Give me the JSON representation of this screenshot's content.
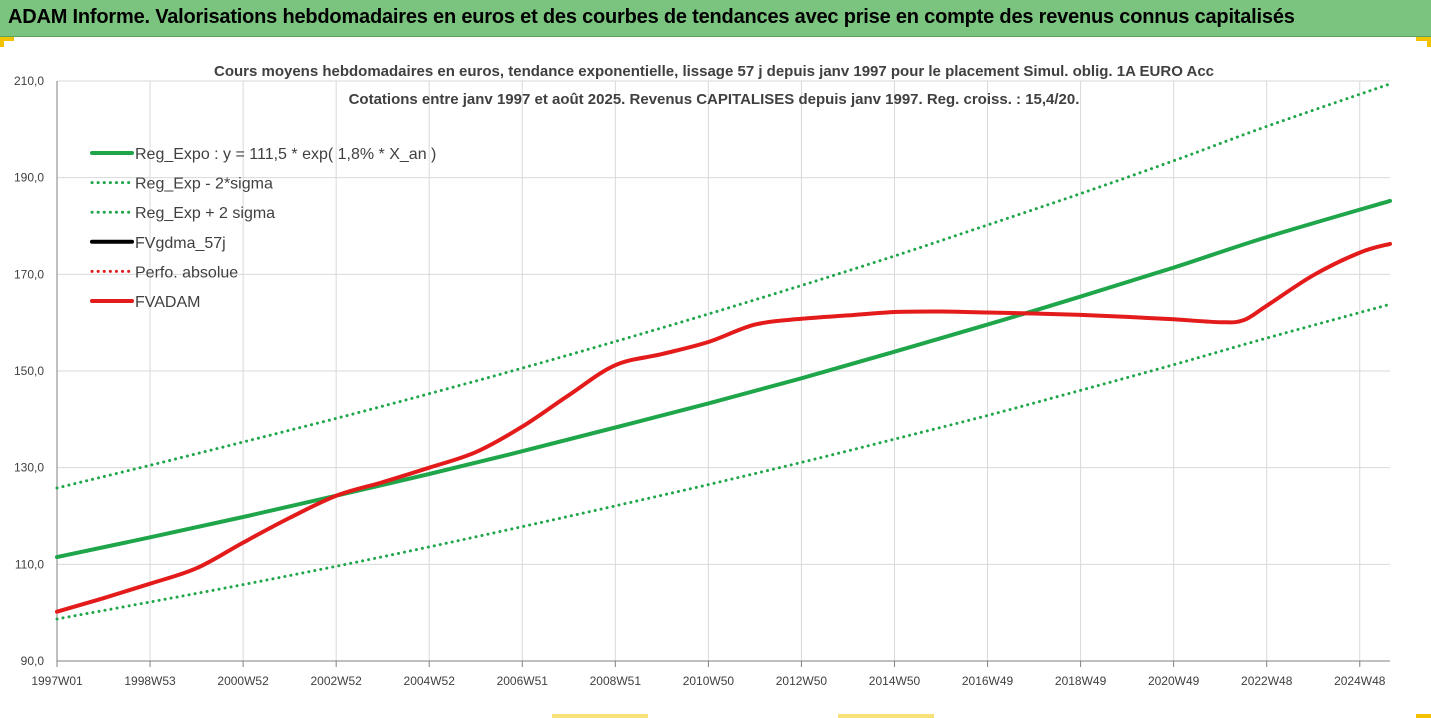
{
  "banner": {
    "title": "ADAM Informe. Valorisations hebdomadaires en euros et des courbes de tendances avec prise en compte des revenus connus capitalisés"
  },
  "colors": {
    "banner_bg": "#7bc47f",
    "green": "#1fa64a",
    "red": "#e31b1b",
    "black": "#000000",
    "grid": "#d9d9d9"
  },
  "chart_data": {
    "type": "line",
    "title": "Cours moyens hebdomadaires en euros, tendance exponentielle, lissage 57 j depuis janv 1997 pour le placement Simul. oblig. 1A EURO Acc",
    "subtitle": "Cotations entre janv 1997 et août 2025. Revenus CAPITALISES depuis janv 1997. Reg. croiss. : 15,4/20.",
    "x_tick_labels": [
      "1997W01",
      "1998W53",
      "2000W52",
      "2002W52",
      "2004W52",
      "2006W51",
      "2008W51",
      "2010W50",
      "2012W50",
      "2014W50",
      "2016W49",
      "2018W49",
      "2020W49",
      "2022W48",
      "2024W48"
    ],
    "x_ticks": [
      1997.0,
      1999.0,
      2001.0,
      2003.0,
      2005.0,
      2007.0,
      2009.0,
      2011.0,
      2013.0,
      2015.0,
      2017.0,
      2019.0,
      2021.0,
      2023.0,
      2025.0
    ],
    "x_range": [
      1997.0,
      2025.65
    ],
    "ylim": [
      90,
      210
    ],
    "y_ticks": [
      90,
      110,
      130,
      150,
      170,
      190,
      210
    ],
    "y_tick_labels": [
      "90,0",
      "110,0",
      "130,0",
      "150,0",
      "170,0",
      "190,0",
      "210,0"
    ],
    "grid": true,
    "legend_position": "top-left",
    "legend": [
      {
        "name": "Reg_Expo : y = 111,5 * exp( 1,8% *  X_an )",
        "color": "#1fa64a",
        "style": "solid"
      },
      {
        "name": "Reg_Exp - 2*sigma",
        "color": "#1fa64a",
        "style": "dotted"
      },
      {
        "name": "Reg_Exp + 2 sigma",
        "color": "#1fa64a",
        "style": "dotted"
      },
      {
        "name": "FVgdma_57j",
        "color": "#000000",
        "style": "solid"
      },
      {
        "name": "Perfo. absolue",
        "color": "#e31b1b",
        "style": "dotted"
      },
      {
        "name": "FVADAM",
        "color": "#e31b1b",
        "style": "solid"
      }
    ],
    "series": [
      {
        "name": "Reg_Expo : y = 111,5 * exp( 1,8% *  X_an )",
        "color": "#1fa64a",
        "style": "solid",
        "x": [
          1997.0,
          1999.0,
          2001.0,
          2003.0,
          2005.0,
          2007.0,
          2009.0,
          2011.0,
          2013.0,
          2015.0,
          2017.0,
          2019.0,
          2021.0,
          2023.0,
          2025.65
        ],
        "values": [
          111.5,
          115.6,
          119.8,
          124.2,
          128.7,
          133.4,
          138.3,
          143.3,
          148.5,
          154.0,
          159.6,
          165.4,
          171.4,
          177.7,
          185.2
        ]
      },
      {
        "name": "Reg_Exp - 2*sigma",
        "color": "#1fa64a",
        "style": "dotted",
        "x": [
          1997.0,
          1999.0,
          2001.0,
          2003.0,
          2005.0,
          2007.0,
          2009.0,
          2011.0,
          2013.0,
          2015.0,
          2017.0,
          2019.0,
          2021.0,
          2023.0,
          2025.65
        ],
        "values": [
          98.7,
          102.2,
          105.8,
          109.6,
          113.6,
          117.8,
          122.1,
          126.5,
          131.1,
          135.9,
          140.8,
          146.0,
          151.3,
          156.8,
          163.8
        ]
      },
      {
        "name": "Reg_Exp + 2 sigma",
        "color": "#1fa64a",
        "style": "dotted",
        "x": [
          1997.0,
          1999.0,
          2001.0,
          2003.0,
          2005.0,
          2007.0,
          2009.0,
          2011.0,
          2013.0,
          2015.0,
          2017.0,
          2019.0,
          2021.0,
          2023.0,
          2025.65
        ],
        "values": [
          125.8,
          130.5,
          135.3,
          140.2,
          145.3,
          150.6,
          156.1,
          161.8,
          167.7,
          173.8,
          180.2,
          186.7,
          193.5,
          200.6,
          209.4
        ]
      },
      {
        "name": "FVADAM",
        "color": "#e31b1b",
        "style": "solid",
        "x": [
          1997.0,
          1998.0,
          1999.0,
          2000.0,
          2001.0,
          2002.0,
          2003.0,
          2004.0,
          2005.0,
          2006.0,
          2007.0,
          2008.0,
          2009.0,
          2010.0,
          2011.0,
          2012.0,
          2013.0,
          2014.0,
          2015.0,
          2016.0,
          2017.0,
          2018.0,
          2019.0,
          2020.0,
          2021.0,
          2022.0,
          2022.5,
          2023.0,
          2024.0,
          2025.0,
          2025.65
        ],
        "values": [
          100.2,
          103.0,
          106.0,
          109.2,
          114.5,
          119.6,
          124.2,
          127.0,
          130.0,
          133.2,
          138.5,
          145.0,
          151.2,
          153.5,
          156.0,
          159.6,
          160.8,
          161.5,
          162.2,
          162.3,
          162.1,
          161.9,
          161.6,
          161.2,
          160.7,
          160.1,
          160.5,
          163.5,
          169.8,
          174.5,
          176.3
        ]
      }
    ]
  }
}
